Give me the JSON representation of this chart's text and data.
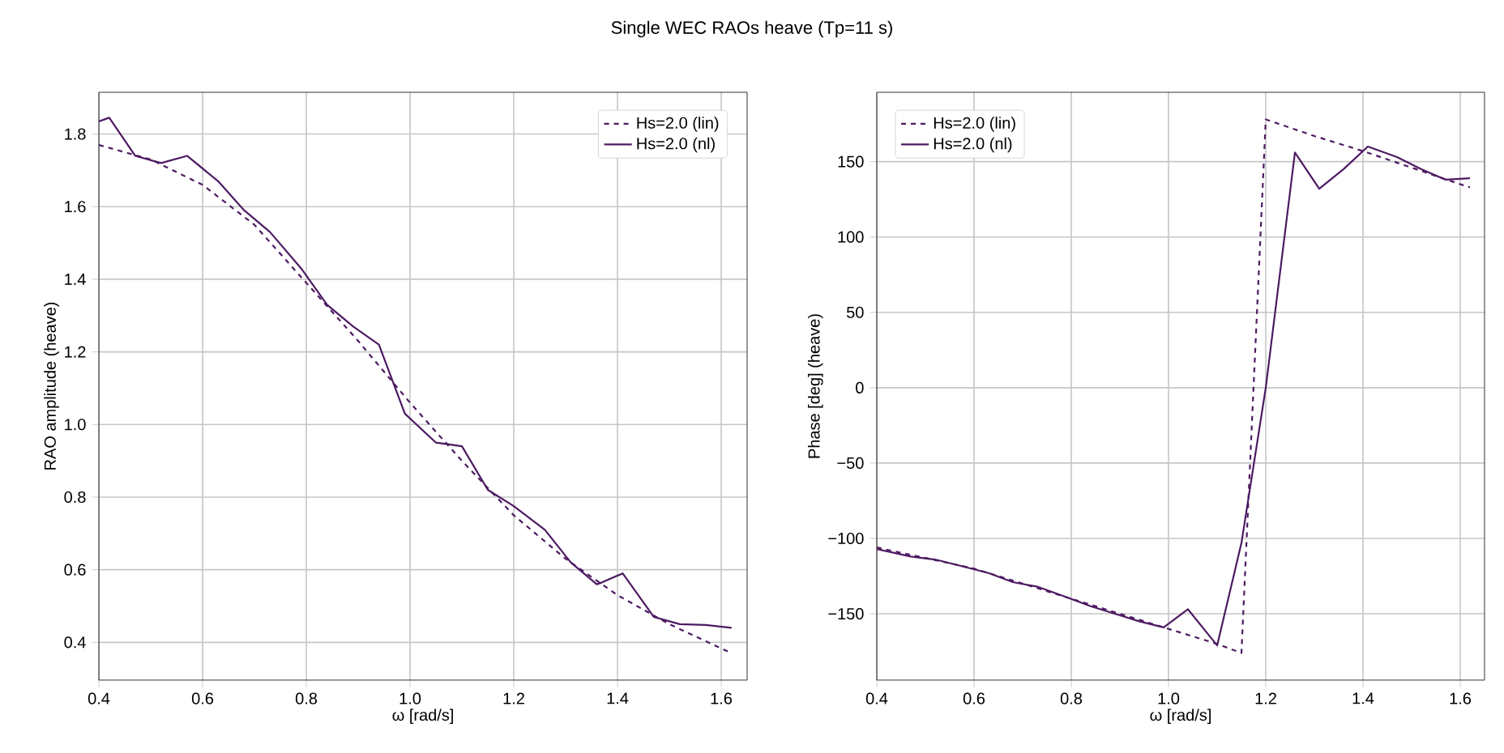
{
  "chart_data": [
    {
      "type": "line",
      "title": "Single WEC RAOs heave (Tp=11 s)",
      "xlabel": "ω [rad/s]",
      "ylabel": "RAO amplitude (heave)",
      "xlim": [
        0.4,
        1.65
      ],
      "ylim": [
        0.296,
        1.915
      ],
      "xticks": [
        {
          "value": 0.4,
          "label": "0.4"
        },
        {
          "value": 0.6,
          "label": "0.6"
        },
        {
          "value": 0.8,
          "label": "0.8"
        },
        {
          "value": 1.0,
          "label": "1.0"
        },
        {
          "value": 1.2,
          "label": "1.2"
        },
        {
          "value": 1.4,
          "label": "1.4"
        },
        {
          "value": 1.6,
          "label": "1.6"
        }
      ],
      "yticks": [
        {
          "value": 0.4,
          "label": "0.4"
        },
        {
          "value": 0.6,
          "label": "0.6"
        },
        {
          "value": 0.8,
          "label": "0.8"
        },
        {
          "value": 1.0,
          "label": "1.0"
        },
        {
          "value": 1.2,
          "label": "1.2"
        },
        {
          "value": 1.4,
          "label": "1.4"
        },
        {
          "value": 1.6,
          "label": "1.6"
        },
        {
          "value": 1.8,
          "label": "1.8"
        }
      ],
      "grid": true,
      "legend": "top right",
      "series": [
        {
          "name": "Hs=2.0 (lin)",
          "color": "#4d1a62",
          "line_style": "dashed",
          "x": [
            0.4,
            0.5,
            0.6,
            0.7,
            0.8,
            0.9,
            1.0,
            1.1,
            1.2,
            1.3,
            1.4,
            1.5,
            1.62
          ],
          "values": [
            1.77,
            1.73,
            1.66,
            1.55,
            1.39,
            1.23,
            1.06,
            0.9,
            0.75,
            0.63,
            0.53,
            0.45,
            0.37
          ]
        },
        {
          "name": "Hs=2.0 (nl)",
          "color": "#4d1a62",
          "line_style": "solid",
          "x": [
            0.4,
            0.42,
            0.47,
            0.52,
            0.57,
            0.63,
            0.68,
            0.73,
            0.79,
            0.84,
            0.89,
            0.94,
            0.99,
            1.05,
            1.1,
            1.15,
            1.2,
            1.26,
            1.31,
            1.36,
            1.37,
            1.41,
            1.47,
            1.52,
            1.57,
            1.62
          ],
          "values": [
            1.835,
            1.845,
            1.74,
            1.72,
            1.74,
            1.67,
            1.59,
            1.53,
            1.43,
            1.33,
            1.27,
            1.22,
            1.03,
            0.95,
            0.94,
            0.82,
            0.775,
            0.71,
            0.62,
            0.56,
            0.565,
            0.59,
            0.47,
            0.45,
            0.448,
            0.44
          ]
        }
      ]
    },
    {
      "type": "line",
      "xlabel": "ω [rad/s]",
      "ylabel": "Phase [deg] (heave)",
      "xlim": [
        0.4,
        1.65
      ],
      "ylim": [
        -194,
        196
      ],
      "xticks": [
        {
          "value": 0.4,
          "label": "0.4"
        },
        {
          "value": 0.6,
          "label": "0.6"
        },
        {
          "value": 0.8,
          "label": "0.8"
        },
        {
          "value": 1.0,
          "label": "1.0"
        },
        {
          "value": 1.2,
          "label": "1.2"
        },
        {
          "value": 1.4,
          "label": "1.4"
        },
        {
          "value": 1.6,
          "label": "1.6"
        }
      ],
      "yticks": [
        {
          "value": -150,
          "label": "−150"
        },
        {
          "value": -100,
          "label": "−100"
        },
        {
          "value": -50,
          "label": "−50"
        },
        {
          "value": 0,
          "label": "0"
        },
        {
          "value": 50,
          "label": "50"
        },
        {
          "value": 100,
          "label": "100"
        },
        {
          "value": 150,
          "label": "150"
        }
      ],
      "grid": true,
      "legend": "top left",
      "series": [
        {
          "name": "Hs=2.0 (lin)",
          "color": "#4d1a62",
          "line_style": "dashed",
          "x": [
            0.4,
            0.5,
            0.6,
            0.7,
            0.8,
            0.9,
            1.0,
            1.1,
            1.15,
            1.2,
            1.3,
            1.4,
            1.5,
            1.6,
            1.62
          ],
          "values": [
            -106,
            -113,
            -120,
            -130,
            -140,
            -150,
            -160,
            -170,
            -176,
            178,
            167,
            157,
            146,
            135,
            133
          ]
        },
        {
          "name": "Hs=2.0 (nl)",
          "color": "#4d1a62",
          "line_style": "solid",
          "x": [
            0.4,
            0.47,
            0.52,
            0.57,
            0.63,
            0.68,
            0.73,
            0.79,
            0.84,
            0.89,
            0.94,
            0.99,
            1.04,
            1.1,
            1.15,
            1.2,
            1.26,
            1.31,
            1.36,
            1.41,
            1.47,
            1.52,
            1.57,
            1.62
          ],
          "values": [
            -107,
            -112,
            -114,
            -118,
            -123,
            -129,
            -132,
            -139,
            -145,
            -150,
            -155,
            -159,
            -147,
            -171,
            -103,
            0,
            156,
            132,
            145,
            160,
            153,
            145,
            138,
            139
          ]
        }
      ]
    }
  ]
}
